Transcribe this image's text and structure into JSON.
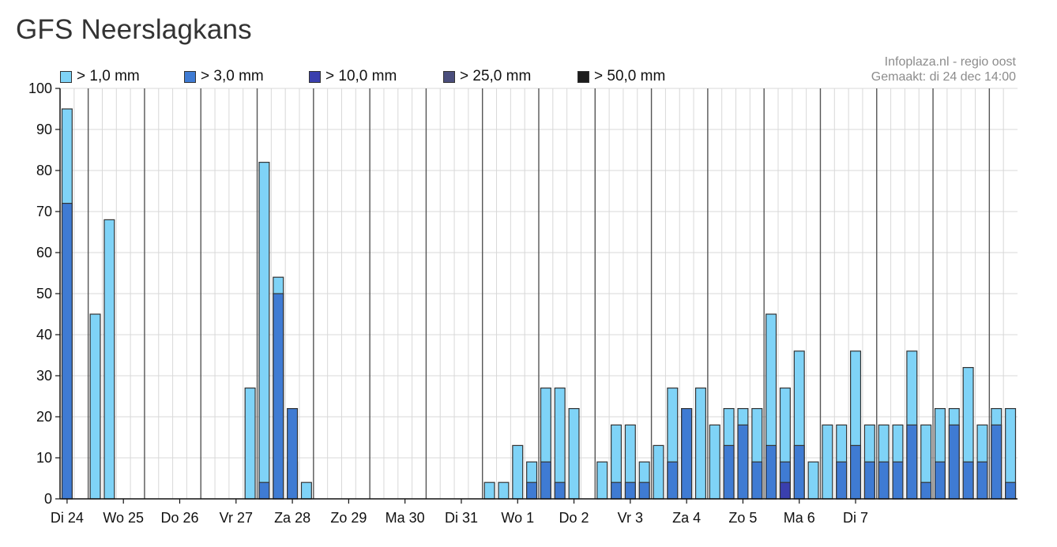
{
  "page": {
    "title": "GFS Neerslagkans",
    "credit_line1": "Infoplaza.nl - regio oost",
    "credit_line2": "Gemaakt: di 24 dec 14:00"
  },
  "colors": {
    "plot_bg": "#ffffff",
    "grid_minor": "#d8d8d8",
    "grid_major": "#555555",
    "bar_outline": "#333333"
  },
  "chart_data": {
    "type": "bar",
    "stacked": false,
    "title": "GFS Neerslagkans",
    "xlabel": "",
    "ylabel": "",
    "ylim": [
      0,
      100
    ],
    "yticks": [
      0,
      10,
      20,
      30,
      40,
      50,
      60,
      70,
      80,
      90,
      100
    ],
    "grid": true,
    "legend_position": "top",
    "day_labels": [
      "Di 24",
      "Wo 25",
      "Do 26",
      "Vr 27",
      "Za 28",
      "Zo 29",
      "Ma 30",
      "Di 31",
      "Wo 1",
      "Do 2",
      "Vr 3",
      "Za 4",
      "Zo 5",
      "Ma 6",
      "Di 7"
    ],
    "series": [
      {
        "name": "> 1,0 mm",
        "color": "#7fd3f7",
        "values": [
          95,
          0,
          45,
          68,
          0,
          0,
          0,
          0,
          0,
          0,
          0,
          0,
          0,
          27,
          82,
          54,
          9,
          4,
          0,
          0,
          0,
          0,
          0,
          0,
          0,
          0,
          0,
          0,
          0,
          0,
          4,
          4,
          13,
          9,
          27,
          27,
          22,
          0,
          9,
          18,
          18,
          9,
          13,
          27,
          22,
          27,
          18,
          22,
          22,
          22,
          45,
          27,
          36,
          9,
          18,
          18,
          36,
          18,
          18,
          18,
          36,
          18,
          22,
          22,
          32,
          18,
          22,
          22
        ]
      },
      {
        "name": "> 3,0 mm",
        "color": "#3f7bd3",
        "values": [
          72,
          0,
          0,
          0,
          0,
          0,
          0,
          0,
          0,
          0,
          0,
          0,
          0,
          0,
          4,
          50,
          22,
          0,
          0,
          0,
          0,
          0,
          0,
          0,
          0,
          0,
          0,
          0,
          0,
          0,
          0,
          0,
          0,
          4,
          9,
          4,
          0,
          0,
          0,
          4,
          4,
          4,
          0,
          9,
          22,
          0,
          0,
          13,
          18,
          9,
          13,
          9,
          13,
          0,
          0,
          9,
          13,
          9,
          9,
          9,
          18,
          4,
          9,
          18,
          9,
          9,
          18,
          4
        ]
      },
      {
        "name": "> 10,0 mm",
        "color": "#3a3fae",
        "values": [
          0,
          0,
          0,
          0,
          0,
          0,
          0,
          0,
          0,
          0,
          0,
          0,
          0,
          0,
          0,
          0,
          0,
          0,
          0,
          0,
          0,
          0,
          0,
          0,
          0,
          0,
          0,
          0,
          0,
          0,
          0,
          0,
          0,
          0,
          0,
          0,
          0,
          0,
          0,
          0,
          0,
          0,
          0,
          0,
          0,
          0,
          0,
          0,
          0,
          0,
          0,
          4,
          0,
          0,
          0,
          0,
          0,
          0,
          0,
          0,
          0,
          0,
          0,
          0,
          0,
          0,
          0,
          0
        ]
      },
      {
        "name": "> 25,0 mm",
        "color": "#4a4e7c",
        "values": [
          0,
          0,
          0,
          0,
          0,
          0,
          0,
          0,
          0,
          0,
          0,
          0,
          0,
          0,
          0,
          0,
          0,
          0,
          0,
          0,
          0,
          0,
          0,
          0,
          0,
          0,
          0,
          0,
          0,
          0,
          0,
          0,
          0,
          0,
          0,
          0,
          0,
          0,
          0,
          0,
          0,
          0,
          0,
          0,
          0,
          0,
          0,
          0,
          0,
          0,
          0,
          0,
          0,
          0,
          0,
          0,
          0,
          0,
          0,
          0,
          0,
          0,
          0,
          0,
          0,
          0,
          0,
          0
        ]
      },
      {
        "name": "> 50,0 mm",
        "color": "#1c1c1c",
        "values": [
          0,
          0,
          0,
          0,
          0,
          0,
          0,
          0,
          0,
          0,
          0,
          0,
          0,
          0,
          0,
          0,
          0,
          0,
          0,
          0,
          0,
          0,
          0,
          0,
          0,
          0,
          0,
          0,
          0,
          0,
          0,
          0,
          0,
          0,
          0,
          0,
          0,
          0,
          0,
          0,
          0,
          0,
          0,
          0,
          0,
          0,
          0,
          0,
          0,
          0,
          0,
          0,
          0,
          0,
          0,
          0,
          0,
          0,
          0,
          0,
          0,
          0,
          0,
          0,
          0,
          0,
          0,
          0
        ]
      }
    ]
  }
}
